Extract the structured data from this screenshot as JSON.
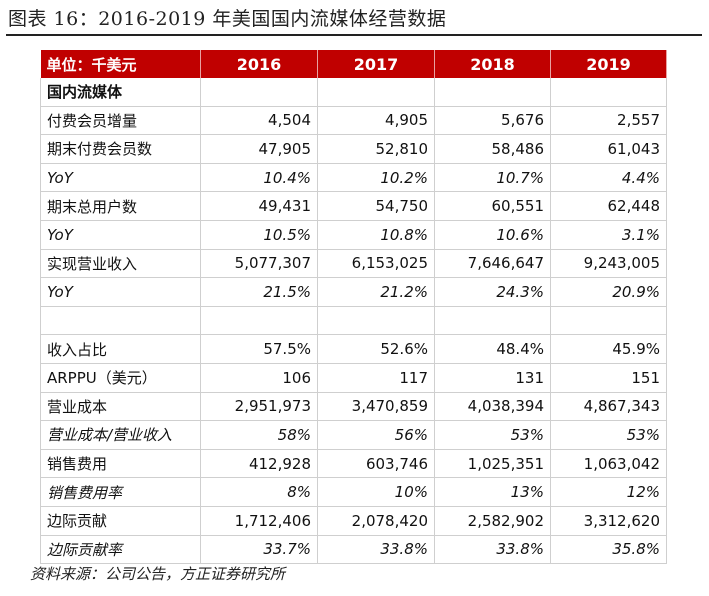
{
  "title": "图表 16：2016-2019 年美国国内流媒体经营数据",
  "table": {
    "header": [
      "单位：千美元",
      "2016",
      "2017",
      "2018",
      "2019"
    ],
    "section_label": "国内流媒体",
    "rows": [
      {
        "label": "付费会员增量",
        "values": [
          "4,504",
          "4,905",
          "5,676",
          "2,557"
        ],
        "italic": false
      },
      {
        "label": "期末付费会员数",
        "values": [
          "47,905",
          "52,810",
          "58,486",
          "61,043"
        ],
        "italic": false
      },
      {
        "label": "YoY",
        "values": [
          "10.4%",
          "10.2%",
          "10.7%",
          "4.4%"
        ],
        "italic": true
      },
      {
        "label": "期末总用户数",
        "values": [
          "49,431",
          "54,750",
          "60,551",
          "62,448"
        ],
        "italic": false
      },
      {
        "label": "YoY",
        "values": [
          "10.5%",
          "10.8%",
          "10.6%",
          "3.1%"
        ],
        "italic": true
      },
      {
        "label": "实现营业收入",
        "values": [
          "5,077,307",
          "6,153,025",
          "7,646,647",
          "9,243,005"
        ],
        "italic": false
      },
      {
        "label": "YoY",
        "values": [
          "21.5%",
          "21.2%",
          "24.3%",
          "20.9%"
        ],
        "italic": true
      },
      {
        "label": "",
        "values": [
          "",
          "",
          "",
          ""
        ],
        "italic": false
      },
      {
        "label": "收入占比",
        "values": [
          "57.5%",
          "52.6%",
          "48.4%",
          "45.9%"
        ],
        "italic": false
      },
      {
        "label": "ARPPU（美元）",
        "values": [
          "106",
          "117",
          "131",
          "151"
        ],
        "italic": false
      },
      {
        "label": "营业成本",
        "values": [
          "2,951,973",
          "3,470,859",
          "4,038,394",
          "4,867,343"
        ],
        "italic": false
      },
      {
        "label": "营业成本/营业收入",
        "values": [
          "58%",
          "56%",
          "53%",
          "53%"
        ],
        "italic": true
      },
      {
        "label": "销售费用",
        "values": [
          "412,928",
          "603,746",
          "1,025,351",
          "1,063,042"
        ],
        "italic": false
      },
      {
        "label": "销售费用率",
        "values": [
          "8%",
          "10%",
          "13%",
          "12%"
        ],
        "italic": true
      },
      {
        "label": "边际贡献",
        "values": [
          "1,712,406",
          "2,078,420",
          "2,582,902",
          "3,312,620"
        ],
        "italic": false
      },
      {
        "label": "边际贡献率",
        "values": [
          "33.7%",
          "33.8%",
          "33.8%",
          "35.8%"
        ],
        "italic": true
      }
    ]
  },
  "source": "资料来源：公司公告，方正证券研究所"
}
